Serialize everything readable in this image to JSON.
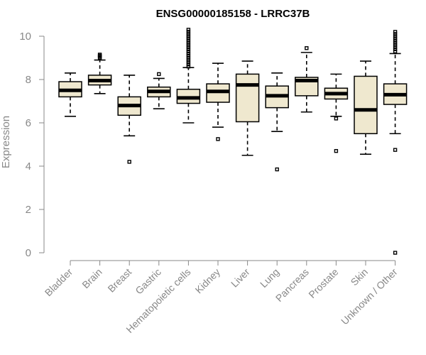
{
  "chart_data": {
    "type": "boxplot",
    "title": "ENSG00000185158 - LRRC37B",
    "ylabel": "Expression",
    "xlabel": "",
    "ylim": [
      0,
      10.3
    ],
    "yticks": [
      0,
      2,
      4,
      6,
      8,
      10
    ],
    "grid": false,
    "colors": {
      "box_fill": "#efe8cf",
      "axis": "#888888"
    },
    "series": [
      {
        "category": "Bladder",
        "whisker_low": 6.3,
        "q1": 7.2,
        "median": 7.5,
        "q3": 7.9,
        "whisker_high": 8.3,
        "outliers": []
      },
      {
        "category": "Brain",
        "whisker_low": 7.35,
        "q1": 7.75,
        "median": 7.95,
        "q3": 8.2,
        "whisker_high": 8.9,
        "outliers": [
          9.0,
          9.05,
          9.1,
          9.15
        ]
      },
      {
        "category": "Breast",
        "whisker_low": 5.4,
        "q1": 6.35,
        "median": 6.8,
        "q3": 7.2,
        "whisker_high": 8.2,
        "outliers": [
          4.2
        ]
      },
      {
        "category": "Gastric",
        "whisker_low": 6.65,
        "q1": 7.2,
        "median": 7.45,
        "q3": 7.65,
        "whisker_high": 8.05,
        "outliers": [
          8.25
        ]
      },
      {
        "category": "Hematopoietic cells",
        "whisker_low": 6.0,
        "q1": 6.9,
        "median": 7.15,
        "q3": 7.55,
        "whisker_high": 8.55,
        "outliers": [
          8.6,
          8.7,
          8.8,
          8.9,
          9.0,
          9.1,
          9.2,
          9.3,
          9.4,
          9.5,
          9.6,
          9.7,
          9.8,
          9.9,
          10.0,
          10.1,
          10.2,
          10.3
        ]
      },
      {
        "category": "Kidney",
        "whisker_low": 5.8,
        "q1": 6.95,
        "median": 7.45,
        "q3": 7.8,
        "whisker_high": 8.75,
        "outliers": [
          5.25
        ]
      },
      {
        "category": "Liver",
        "whisker_low": 4.5,
        "q1": 6.05,
        "median": 7.75,
        "q3": 8.25,
        "whisker_high": 8.85,
        "outliers": []
      },
      {
        "category": "Lung",
        "whisker_low": 5.6,
        "q1": 6.7,
        "median": 7.25,
        "q3": 7.7,
        "whisker_high": 8.3,
        "outliers": [
          3.85
        ]
      },
      {
        "category": "Pancreas",
        "whisker_low": 6.5,
        "q1": 7.25,
        "median": 7.95,
        "q3": 8.1,
        "whisker_high": 9.25,
        "outliers": [
          9.45
        ]
      },
      {
        "category": "Prostate",
        "whisker_low": 6.3,
        "q1": 7.1,
        "median": 7.35,
        "q3": 7.6,
        "whisker_high": 8.25,
        "outliers": [
          6.2,
          4.7
        ]
      },
      {
        "category": "Skin",
        "whisker_low": 4.55,
        "q1": 5.5,
        "median": 6.6,
        "q3": 8.15,
        "whisker_high": 8.85,
        "outliers": []
      },
      {
        "category": "Unknown / Other",
        "whisker_low": 5.5,
        "q1": 6.85,
        "median": 7.3,
        "q3": 7.8,
        "whisker_high": 9.2,
        "outliers": [
          9.3,
          9.4,
          9.5,
          9.6,
          9.7,
          9.8,
          9.9,
          10.0,
          10.1,
          10.2,
          4.75,
          0.0
        ]
      }
    ]
  }
}
